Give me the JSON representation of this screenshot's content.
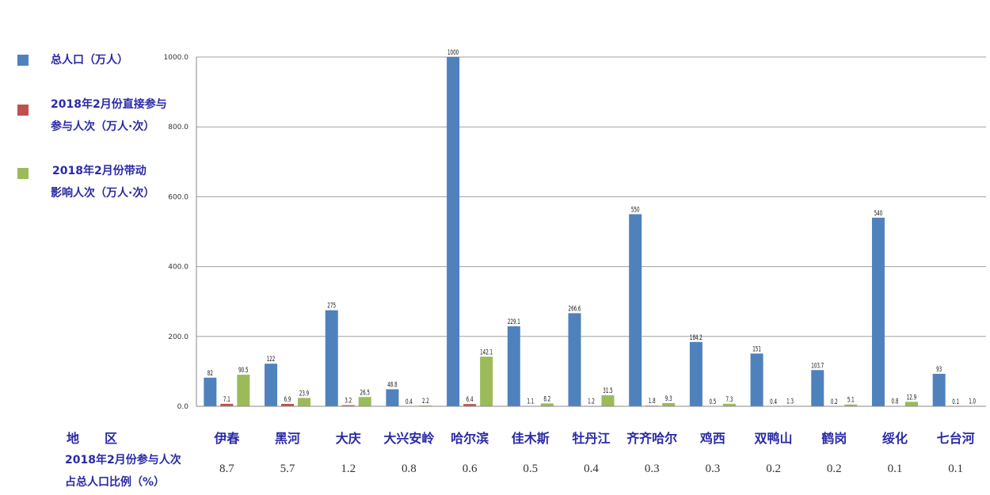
{
  "chart_data": {
    "type": "bar",
    "categories": [
      "伊春",
      "黑河",
      "大庆",
      "大兴安岭",
      "哈尔滨",
      "佳木斯",
      "牡丹江",
      "齐齐哈尔",
      "鸡西",
      "双鸭山",
      "鹤岗",
      "绥化",
      "七台河"
    ],
    "series": [
      {
        "name": "总人口（万人）",
        "color": "#4f81bd",
        "values": [
          82,
          122,
          275,
          48.8,
          1000,
          229.1,
          266.6,
          550,
          184.2,
          151,
          103.7,
          540,
          93
        ],
        "labels": [
          "82",
          "122",
          "275",
          "48.8",
          "1000",
          "229.1",
          "266.6",
          "550",
          "184.2",
          "151",
          "103.7",
          "540",
          "93"
        ]
      },
      {
        "name": "2018年2月份直接参与参与人次（万人·次）",
        "color": "#c0504d",
        "values": [
          7.1,
          6.9,
          3.2,
          0.4,
          6.4,
          1.1,
          1.2,
          1.8,
          0.5,
          0.4,
          0.2,
          0.8,
          0.1
        ],
        "labels": [
          "7.1",
          "6.9",
          "3.2",
          "0.4",
          "6.4",
          "1.1",
          "1.2",
          "1.8",
          "0.5",
          "0.4",
          "0.2",
          "0.8",
          "0.1"
        ]
      },
      {
        "name": "2018年2月份带动影响人次（万人·次）",
        "color": "#9bbb59",
        "values": [
          90.5,
          23.9,
          26.5,
          2.2,
          142.1,
          8.2,
          31.5,
          9.3,
          7.3,
          1.3,
          5.1,
          12.9,
          1.0
        ],
        "labels": [
          "90.5",
          "23.9",
          "26.5",
          "2.2",
          "142.1",
          "8.2",
          "31.5",
          "9.3",
          "7.3",
          "1.3",
          "5.1",
          "12.9",
          "1.0"
        ]
      }
    ],
    "ylim": [
      0,
      1000
    ],
    "yticks": [
      "0.0",
      "200.0",
      "400.0",
      "600.0",
      "800.0",
      "1000.0"
    ],
    "grid": true,
    "legend_position": "left"
  },
  "legend": {
    "items": [
      {
        "lines": [
          "总人口（万人）"
        ],
        "color": "#4f81bd"
      },
      {
        "lines": [
          "2018年2月份直接参与",
          "参与人次（万人·次）"
        ],
        "color": "#c0504d"
      },
      {
        "lines": [
          "2018年2月份带动",
          "影响人次（万人·次）"
        ],
        "color": "#9bbb59"
      }
    ]
  },
  "table": {
    "header_label": "地　　区",
    "ratio_label_line1": "2018年2月份参与人次",
    "ratio_label_line2": "占总人口比例（%）",
    "ratios": [
      "8.7",
      "5.7",
      "1.2",
      "0.8",
      "0.6",
      "0.5",
      "0.4",
      "0.3",
      "0.3",
      "0.2",
      "0.2",
      "0.1",
      "0.1"
    ]
  }
}
